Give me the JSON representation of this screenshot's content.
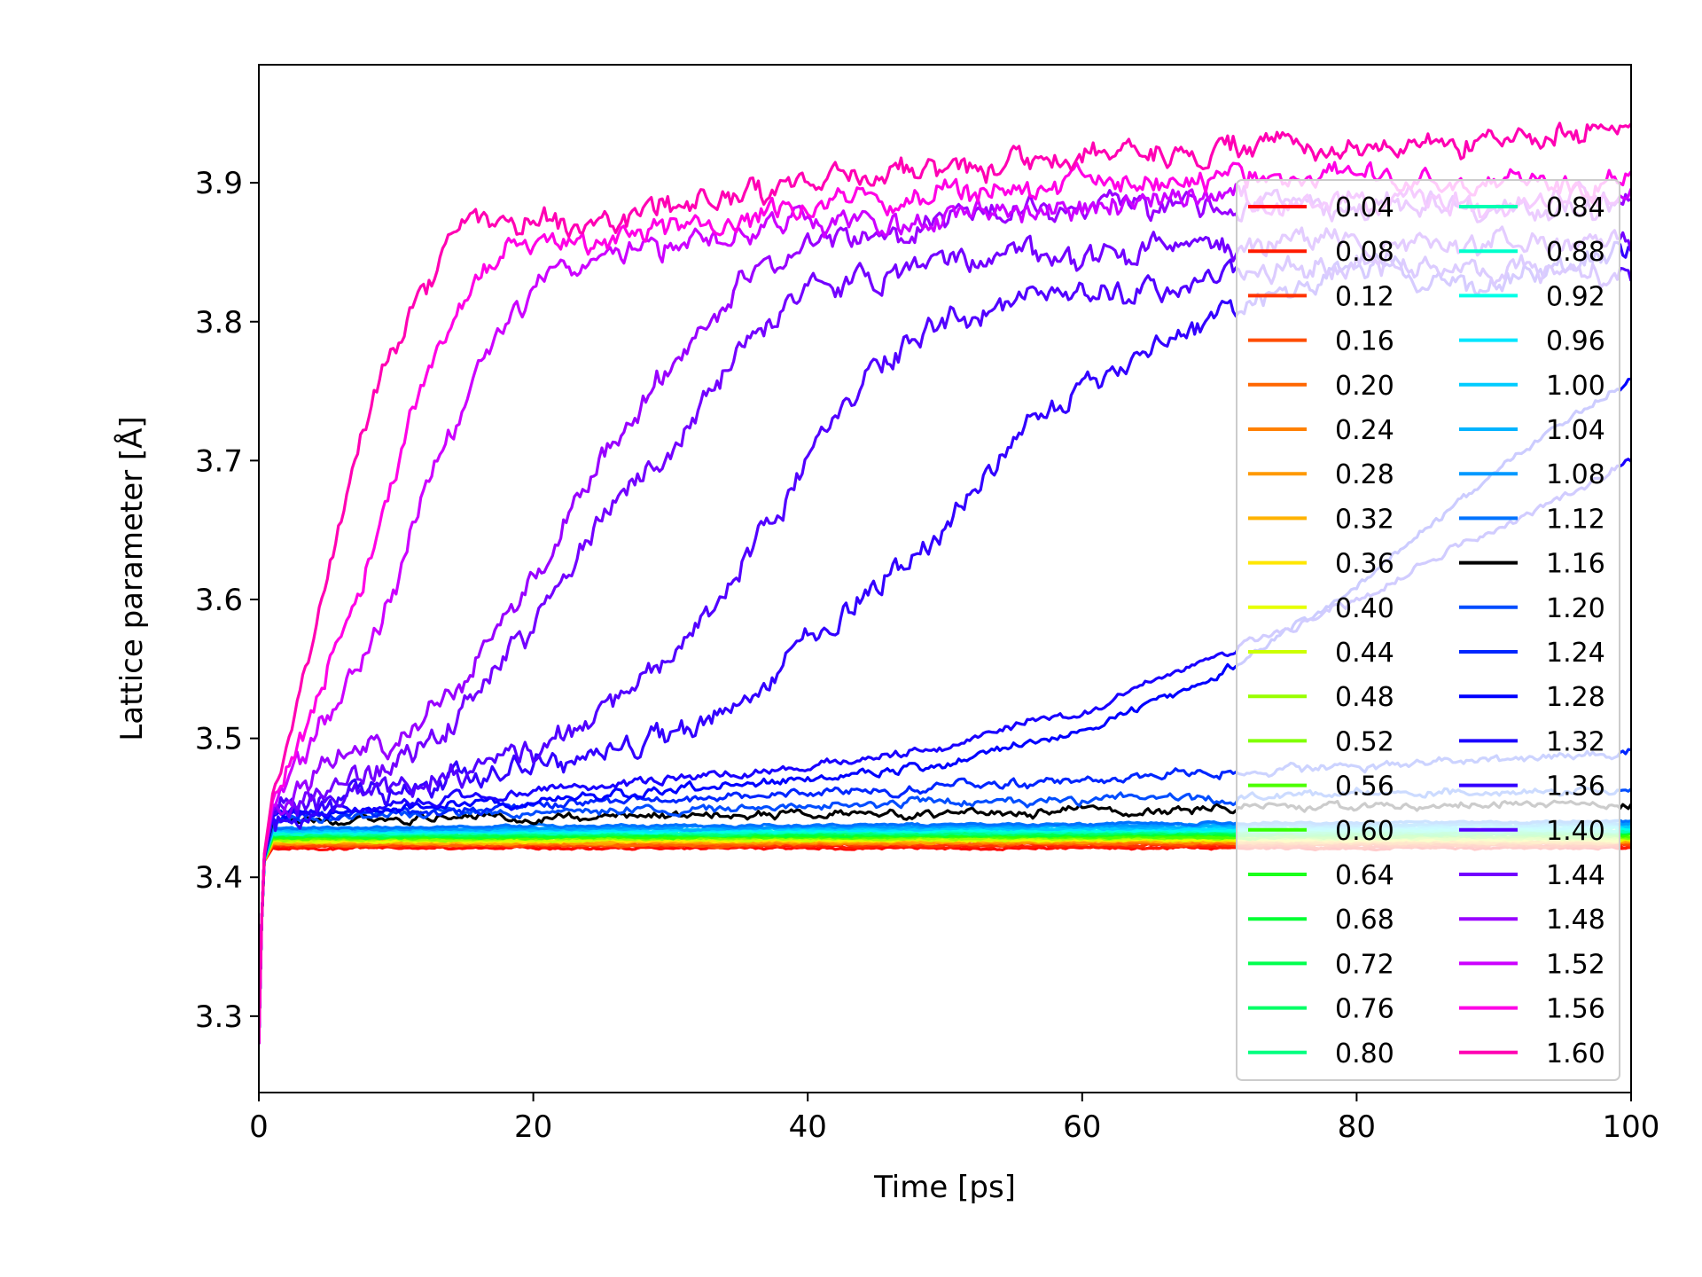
{
  "chart_data": {
    "type": "line",
    "title": "",
    "xlabel": "Time [ps]",
    "ylabel": "Lattice parameter [Å]",
    "xlim": [
      0,
      100
    ],
    "ylim": [
      3.245,
      3.985
    ],
    "xticks": [
      "0",
      "20",
      "40",
      "60",
      "80",
      "100"
    ],
    "xtick_values": [
      0,
      20,
      40,
      60,
      80,
      100
    ],
    "yticks": [
      "3.3",
      "3.4",
      "3.5",
      "3.6",
      "3.7",
      "3.8",
      "3.9"
    ],
    "ytick_values": [
      3.3,
      3.4,
      3.5,
      3.6,
      3.7,
      3.8,
      3.9
    ],
    "grid": false,
    "legend_position": "right",
    "legend_columns": 2,
    "series": [
      {
        "name": "0.04",
        "color": "#ff0000",
        "x": [
          0,
          0.3,
          1,
          10,
          30,
          50,
          70,
          90,
          100
        ],
        "y": [
          3.28,
          3.41,
          3.421,
          3.421,
          3.421,
          3.421,
          3.421,
          3.421,
          3.421
        ]
      },
      {
        "name": "0.08",
        "color": "#ff1a00",
        "x": [
          0,
          0.3,
          1,
          10,
          30,
          50,
          70,
          90,
          100
        ],
        "y": [
          3.28,
          3.41,
          3.422,
          3.422,
          3.422,
          3.422,
          3.422,
          3.422,
          3.422
        ]
      },
      {
        "name": "0.12",
        "color": "#ff3300",
        "x": [
          0,
          0.3,
          1,
          10,
          30,
          50,
          70,
          90,
          100
        ],
        "y": [
          3.28,
          3.41,
          3.423,
          3.423,
          3.423,
          3.423,
          3.423,
          3.423,
          3.423
        ]
      },
      {
        "name": "0.16",
        "color": "#ff4d00",
        "x": [
          0,
          0.3,
          1,
          10,
          30,
          50,
          70,
          90,
          100
        ],
        "y": [
          3.28,
          3.41,
          3.423,
          3.423,
          3.423,
          3.424,
          3.424,
          3.424,
          3.424
        ]
      },
      {
        "name": "0.20",
        "color": "#ff6600",
        "x": [
          0,
          0.3,
          1,
          10,
          30,
          50,
          70,
          90,
          100
        ],
        "y": [
          3.28,
          3.41,
          3.424,
          3.424,
          3.424,
          3.424,
          3.425,
          3.425,
          3.425
        ]
      },
      {
        "name": "0.24",
        "color": "#ff8000",
        "x": [
          0,
          0.3,
          1,
          10,
          30,
          50,
          70,
          90,
          100
        ],
        "y": [
          3.28,
          3.41,
          3.424,
          3.424,
          3.425,
          3.425,
          3.425,
          3.425,
          3.425
        ]
      },
      {
        "name": "0.28",
        "color": "#ff9900",
        "x": [
          0,
          0.3,
          1,
          10,
          30,
          50,
          70,
          90,
          100
        ],
        "y": [
          3.28,
          3.41,
          3.425,
          3.425,
          3.425,
          3.425,
          3.426,
          3.426,
          3.426
        ]
      },
      {
        "name": "0.32",
        "color": "#ffb300",
        "x": [
          0,
          0.3,
          1,
          10,
          30,
          50,
          70,
          90,
          100
        ],
        "y": [
          3.28,
          3.41,
          3.425,
          3.425,
          3.426,
          3.426,
          3.426,
          3.426,
          3.426
        ]
      },
      {
        "name": "0.36",
        "color": "#ffe600",
        "x": [
          0,
          0.3,
          1,
          10,
          30,
          50,
          70,
          90,
          100
        ],
        "y": [
          3.28,
          3.41,
          3.426,
          3.426,
          3.426,
          3.427,
          3.427,
          3.427,
          3.427
        ]
      },
      {
        "name": "0.40",
        "color": "#e6ff00",
        "x": [
          0,
          0.3,
          1,
          10,
          30,
          50,
          70,
          90,
          100
        ],
        "y": [
          3.28,
          3.41,
          3.426,
          3.426,
          3.427,
          3.427,
          3.427,
          3.427,
          3.427
        ]
      },
      {
        "name": "0.44",
        "color": "#ccff00",
        "x": [
          0,
          0.3,
          1,
          10,
          30,
          50,
          70,
          90,
          100
        ],
        "y": [
          3.28,
          3.41,
          3.427,
          3.427,
          3.427,
          3.427,
          3.428,
          3.428,
          3.428
        ]
      },
      {
        "name": "0.48",
        "color": "#99ff00",
        "x": [
          0,
          0.3,
          1,
          10,
          30,
          50,
          70,
          90,
          100
        ],
        "y": [
          3.28,
          3.41,
          3.427,
          3.427,
          3.428,
          3.428,
          3.428,
          3.428,
          3.428
        ]
      },
      {
        "name": "0.52",
        "color": "#80ff00",
        "x": [
          0,
          0.3,
          1,
          10,
          30,
          50,
          70,
          90,
          100
        ],
        "y": [
          3.28,
          3.41,
          3.428,
          3.428,
          3.428,
          3.429,
          3.429,
          3.429,
          3.429
        ]
      },
      {
        "name": "0.56",
        "color": "#4dff00",
        "x": [
          0,
          0.3,
          1,
          10,
          30,
          50,
          70,
          90,
          100
        ],
        "y": [
          3.28,
          3.41,
          3.428,
          3.428,
          3.429,
          3.429,
          3.429,
          3.429,
          3.43
        ]
      },
      {
        "name": "0.60",
        "color": "#33ff00",
        "x": [
          0,
          0.3,
          1,
          10,
          30,
          50,
          70,
          90,
          100
        ],
        "y": [
          3.28,
          3.41,
          3.429,
          3.429,
          3.429,
          3.43,
          3.43,
          3.43,
          3.43
        ]
      },
      {
        "name": "0.64",
        "color": "#1aff1a",
        "x": [
          0,
          0.3,
          1,
          10,
          30,
          50,
          70,
          90,
          100
        ],
        "y": [
          3.28,
          3.41,
          3.429,
          3.429,
          3.43,
          3.43,
          3.431,
          3.431,
          3.431
        ]
      },
      {
        "name": "0.68",
        "color": "#00ff33",
        "x": [
          0,
          0.3,
          1,
          10,
          30,
          50,
          70,
          90,
          100
        ],
        "y": [
          3.28,
          3.41,
          3.43,
          3.43,
          3.43,
          3.431,
          3.431,
          3.431,
          3.431
        ]
      },
      {
        "name": "0.72",
        "color": "#00ff4d",
        "x": [
          0,
          0.3,
          1,
          10,
          30,
          50,
          70,
          90,
          100
        ],
        "y": [
          3.28,
          3.41,
          3.43,
          3.43,
          3.431,
          3.431,
          3.432,
          3.432,
          3.432
        ]
      },
      {
        "name": "0.76",
        "color": "#00ff66",
        "x": [
          0,
          0.3,
          1,
          10,
          30,
          50,
          70,
          90,
          100
        ],
        "y": [
          3.28,
          3.41,
          3.431,
          3.431,
          3.431,
          3.432,
          3.432,
          3.432,
          3.433
        ]
      },
      {
        "name": "0.80",
        "color": "#00ff80",
        "x": [
          0,
          0.3,
          1,
          10,
          30,
          50,
          70,
          90,
          100
        ],
        "y": [
          3.28,
          3.41,
          3.431,
          3.431,
          3.432,
          3.432,
          3.433,
          3.433,
          3.433
        ]
      },
      {
        "name": "0.84",
        "color": "#00ffb3",
        "x": [
          0,
          0.3,
          1,
          10,
          30,
          50,
          70,
          90,
          100
        ],
        "y": [
          3.28,
          3.41,
          3.432,
          3.432,
          3.432,
          3.433,
          3.433,
          3.434,
          3.434
        ]
      },
      {
        "name": "0.88",
        "color": "#00ffcc",
        "x": [
          0,
          0.3,
          1,
          10,
          30,
          50,
          70,
          90,
          100
        ],
        "y": [
          3.28,
          3.41,
          3.432,
          3.432,
          3.433,
          3.433,
          3.434,
          3.434,
          3.434
        ]
      },
      {
        "name": "0.92",
        "color": "#00ffe6",
        "x": [
          0,
          0.3,
          1,
          10,
          30,
          50,
          70,
          90,
          100
        ],
        "y": [
          3.28,
          3.41,
          3.433,
          3.433,
          3.433,
          3.434,
          3.434,
          3.435,
          3.435
        ]
      },
      {
        "name": "0.96",
        "color": "#00e6ff",
        "x": [
          0,
          0.3,
          1,
          10,
          30,
          50,
          70,
          90,
          100
        ],
        "y": [
          3.28,
          3.41,
          3.433,
          3.433,
          3.434,
          3.435,
          3.435,
          3.436,
          3.436
        ]
      },
      {
        "name": "1.00",
        "color": "#00ccff",
        "x": [
          0,
          0.3,
          1,
          10,
          30,
          50,
          70,
          90,
          100
        ],
        "y": [
          3.28,
          3.41,
          3.434,
          3.434,
          3.435,
          3.435,
          3.436,
          3.437,
          3.437
        ]
      },
      {
        "name": "1.04",
        "color": "#00b3ff",
        "x": [
          0,
          0.3,
          1,
          10,
          30,
          50,
          70,
          90,
          100
        ],
        "y": [
          3.28,
          3.41,
          3.434,
          3.435,
          3.435,
          3.436,
          3.437,
          3.438,
          3.438
        ]
      },
      {
        "name": "1.08",
        "color": "#0099ff",
        "x": [
          0,
          0.3,
          1,
          10,
          30,
          50,
          70,
          90,
          100
        ],
        "y": [
          3.28,
          3.41,
          3.435,
          3.435,
          3.436,
          3.437,
          3.438,
          3.439,
          3.439
        ]
      },
      {
        "name": "1.12",
        "color": "#0073ff",
        "x": [
          0,
          0.3,
          1,
          10,
          30,
          50,
          70,
          90,
          100
        ],
        "y": [
          3.28,
          3.41,
          3.436,
          3.436,
          3.437,
          3.438,
          3.439,
          3.44,
          3.441
        ]
      },
      {
        "name": "1.16",
        "color": "#000000",
        "x": [
          0,
          0.3,
          1,
          10,
          20,
          30,
          40,
          50,
          60,
          70,
          80,
          90,
          100
        ],
        "y": [
          3.28,
          3.41,
          3.44,
          3.441,
          3.443,
          3.444,
          3.445,
          3.446,
          3.448,
          3.449,
          3.45,
          3.452,
          3.453
        ]
      },
      {
        "name": "1.20",
        "color": "#004dff",
        "x": [
          0,
          0.3,
          1,
          10,
          20,
          30,
          40,
          50,
          60,
          70,
          80,
          90,
          100
        ],
        "y": [
          3.28,
          3.41,
          3.442,
          3.445,
          3.448,
          3.45,
          3.452,
          3.454,
          3.456,
          3.458,
          3.46,
          3.462,
          3.463
        ]
      },
      {
        "name": "1.24",
        "color": "#0026ff",
        "x": [
          0,
          0.3,
          1,
          10,
          20,
          30,
          40,
          50,
          60,
          70,
          80,
          90,
          100
        ],
        "y": [
          3.28,
          3.41,
          3.443,
          3.447,
          3.452,
          3.456,
          3.46,
          3.465,
          3.47,
          3.475,
          3.48,
          3.485,
          3.49
        ]
      },
      {
        "name": "1.28",
        "color": "#0000ff",
        "x": [
          0,
          0.3,
          1,
          10,
          20,
          30,
          40,
          50,
          60,
          70,
          80,
          90,
          100
        ],
        "y": [
          3.28,
          3.41,
          3.444,
          3.45,
          3.456,
          3.462,
          3.47,
          3.482,
          3.505,
          3.545,
          3.61,
          3.69,
          3.76
        ]
      },
      {
        "name": "1.32",
        "color": "#1a00ff",
        "x": [
          0,
          0.3,
          1,
          10,
          20,
          30,
          40,
          50,
          60,
          70,
          80,
          90,
          100
        ],
        "y": [
          3.28,
          3.41,
          3.445,
          3.453,
          3.462,
          3.47,
          3.48,
          3.495,
          3.52,
          3.56,
          3.6,
          3.65,
          3.7
        ]
      },
      {
        "name": "1.36",
        "color": "#3300ff",
        "x": [
          0,
          0.3,
          1,
          10,
          20,
          30,
          35,
          40,
          45,
          50,
          55,
          60,
          65,
          70,
          80,
          90,
          100
        ],
        "y": [
          3.28,
          3.41,
          3.446,
          3.46,
          3.475,
          3.5,
          3.52,
          3.57,
          3.61,
          3.66,
          3.71,
          3.75,
          3.78,
          3.81,
          3.84,
          3.83,
          3.85
        ]
      },
      {
        "name": "1.40",
        "color": "#5200ff",
        "x": [
          0,
          0.3,
          1,
          10,
          20,
          25,
          30,
          35,
          40,
          45,
          50,
          60,
          70,
          80,
          90,
          100
        ],
        "y": [
          3.28,
          3.41,
          3.447,
          3.465,
          3.49,
          3.52,
          3.565,
          3.62,
          3.7,
          3.77,
          3.8,
          3.82,
          3.83,
          3.84,
          3.84,
          3.83
        ]
      },
      {
        "name": "1.44",
        "color": "#7300ff",
        "x": [
          0,
          0.3,
          1,
          10,
          15,
          20,
          25,
          30,
          35,
          40,
          45,
          50,
          60,
          70,
          80,
          90,
          100
        ],
        "y": [
          3.28,
          3.41,
          3.448,
          3.48,
          3.52,
          3.58,
          3.65,
          3.71,
          3.78,
          3.82,
          3.835,
          3.845,
          3.85,
          3.855,
          3.855,
          3.855,
          3.855
        ]
      },
      {
        "name": "1.48",
        "color": "#9900ff",
        "x": [
          0,
          0.3,
          1,
          5,
          10,
          15,
          20,
          25,
          30,
          35,
          40,
          50,
          60,
          70,
          80,
          90,
          100
        ],
        "y": [
          3.28,
          3.41,
          3.449,
          3.48,
          3.5,
          3.54,
          3.62,
          3.7,
          3.77,
          3.83,
          3.855,
          3.87,
          3.88,
          3.88,
          3.885,
          3.88,
          3.885
        ]
      },
      {
        "name": "1.52",
        "color": "#cc00ff",
        "x": [
          0,
          0.3,
          1,
          4,
          7,
          10,
          12,
          15,
          18,
          20,
          25,
          30,
          40,
          50,
          60,
          70,
          80,
          90,
          100
        ],
        "y": [
          3.28,
          3.41,
          3.452,
          3.5,
          3.55,
          3.61,
          3.68,
          3.74,
          3.79,
          3.82,
          3.845,
          3.855,
          3.87,
          3.875,
          3.88,
          3.885,
          3.885,
          3.885,
          3.885
        ]
      },
      {
        "name": "1.56",
        "color": "#ff00e6",
        "x": [
          0,
          0.3,
          1,
          4,
          7,
          9,
          11,
          13,
          15,
          18,
          20,
          25,
          30,
          40,
          50,
          60,
          70,
          80,
          90,
          100
        ],
        "y": [
          3.28,
          3.41,
          3.455,
          3.52,
          3.6,
          3.67,
          3.73,
          3.78,
          3.82,
          3.85,
          3.855,
          3.86,
          3.87,
          3.885,
          3.89,
          3.9,
          3.905,
          3.905,
          3.9,
          3.9
        ]
      },
      {
        "name": "1.60",
        "color": "#ff00b3",
        "x": [
          0,
          0.3,
          1,
          3,
          5,
          7,
          9,
          11,
          13,
          15,
          17,
          20,
          25,
          30,
          40,
          50,
          60,
          70,
          80,
          90,
          100
        ],
        "y": [
          3.28,
          3.41,
          3.46,
          3.53,
          3.62,
          3.7,
          3.76,
          3.8,
          3.84,
          3.875,
          3.87,
          3.87,
          3.87,
          3.88,
          3.9,
          3.91,
          3.915,
          3.925,
          3.925,
          3.93,
          3.94
        ]
      }
    ]
  }
}
